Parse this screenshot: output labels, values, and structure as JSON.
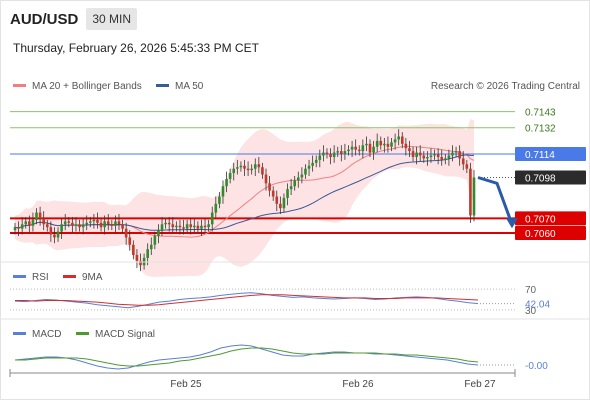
{
  "header": {
    "symbol": "AUD/USD",
    "timeframe": "30 MIN",
    "datetime": "Thursday, February 26, 2026 5:45:33 PM CET",
    "copyright": "Research © 2026 Trading Central"
  },
  "colors": {
    "up": "#2e8b2e",
    "down": "#c0392b",
    "ma20": "#f08080",
    "ma50": "#3a5a9a",
    "bollinger_fill": "#fde3e3",
    "support": "#dd0000",
    "resistance_blue": "#4a7ae8",
    "target_green": "#8cc36b",
    "rsi": "#5b7fd6",
    "rsi_ma": "#d32f2f",
    "macd": "#5b7fd6",
    "macd_signal": "#4f9a2e",
    "arrow": "#2a5aa8"
  },
  "chart_data": [
    {
      "type": "candlestick",
      "panel": "price",
      "legend": [
        {
          "name": "MA 20 + Bollinger Bands",
          "color": "#f08080"
        },
        {
          "name": "MA 50",
          "color": "#3a5a9a"
        }
      ],
      "x_ticks": [
        "Feb 25",
        "Feb 26",
        "Feb 27"
      ],
      "ylim": [
        0.7045,
        0.7153
      ],
      "levels": [
        {
          "value": 0.7143,
          "label": "0.7143",
          "kind": "target"
        },
        {
          "value": 0.7132,
          "label": "0.7132",
          "kind": "target"
        },
        {
          "value": 0.7114,
          "label": "0.7114",
          "kind": "resistance"
        },
        {
          "value": 0.7098,
          "label": "0.7098",
          "kind": "last"
        },
        {
          "value": 0.707,
          "label": "0.7070",
          "kind": "support"
        },
        {
          "value": 0.706,
          "label": "0.7060",
          "kind": "support"
        }
      ],
      "closes": [
        0.7064,
        0.7063,
        0.7066,
        0.7068,
        0.7065,
        0.7069,
        0.7074,
        0.707,
        0.7066,
        0.7064,
        0.7059,
        0.7057,
        0.7061,
        0.7066,
        0.7068,
        0.7067,
        0.7065,
        0.7066,
        0.7064,
        0.7066,
        0.7067,
        0.7068,
        0.7069,
        0.7067,
        0.7064,
        0.7068,
        0.7066,
        0.7065,
        0.7068,
        0.7066,
        0.7063,
        0.7057,
        0.7052,
        0.7045,
        0.7041,
        0.7038,
        0.7043,
        0.7049,
        0.7052,
        0.7058,
        0.7062,
        0.7066,
        0.7067,
        0.7066,
        0.7064,
        0.7065,
        0.7064,
        0.7063,
        0.7066,
        0.7064,
        0.7065,
        0.7063,
        0.7065,
        0.7064,
        0.7066,
        0.7074,
        0.708,
        0.7085,
        0.7092,
        0.7097,
        0.7101,
        0.7104,
        0.7105,
        0.7106,
        0.7104,
        0.7103,
        0.7104,
        0.7107,
        0.7105,
        0.71,
        0.7094,
        0.7089,
        0.7085,
        0.708,
        0.7077,
        0.7084,
        0.709,
        0.7092,
        0.7096,
        0.7098,
        0.71,
        0.7104,
        0.7106,
        0.7108,
        0.711,
        0.7113,
        0.7115,
        0.7114,
        0.7112,
        0.7115,
        0.7116,
        0.7114,
        0.7116,
        0.7117,
        0.7119,
        0.7117,
        0.7116,
        0.712,
        0.7121,
        0.7115,
        0.7119,
        0.7123,
        0.712,
        0.7121,
        0.7119,
        0.7122,
        0.7124,
        0.7126,
        0.7121,
        0.7118,
        0.7116,
        0.7112,
        0.7115,
        0.7113,
        0.7111,
        0.7112,
        0.7113,
        0.7114,
        0.7112,
        0.711,
        0.7111,
        0.7113,
        0.7115,
        0.7116,
        0.7111,
        0.7107,
        0.7104,
        0.7072,
        0.7098
      ],
      "forecast": [
        0.7098,
        0.7094,
        0.7066
      ]
    },
    {
      "type": "line",
      "panel": "rsi",
      "legend": [
        {
          "name": "RSI",
          "color": "#5b7fd6"
        },
        {
          "name": "9MA",
          "color": "#d32f2f"
        }
      ],
      "levels": [
        70,
        30
      ],
      "ylim": [
        22,
        78
      ],
      "value_label": "42.04",
      "series": [
        {
          "name": "RSI",
          "values": [
            47,
            46,
            48,
            50,
            49,
            47,
            45,
            43,
            40,
            38,
            36,
            34,
            37,
            41,
            45,
            47,
            50,
            52,
            53,
            55,
            58,
            60,
            62,
            63,
            61,
            58,
            56,
            54,
            55,
            53,
            52,
            51,
            52,
            53,
            52,
            50,
            51,
            53,
            54,
            55,
            54,
            52,
            49,
            47,
            44,
            42
          ]
        },
        {
          "name": "9MA",
          "values": [
            48,
            48,
            47,
            48,
            48,
            48,
            47,
            46,
            45,
            43,
            41,
            40,
            39,
            39,
            40,
            42,
            44,
            46,
            48,
            50,
            52,
            54,
            56,
            58,
            59,
            59,
            59,
            58,
            57,
            56,
            55,
            54,
            53,
            53,
            53,
            52,
            52,
            52,
            53,
            53,
            53,
            53,
            52,
            51,
            50,
            49
          ]
        }
      ]
    },
    {
      "type": "line",
      "panel": "macd",
      "legend": [
        {
          "name": "MACD",
          "color": "#5b7fd6"
        },
        {
          "name": "MACD Signal",
          "color": "#4f9a2e"
        }
      ],
      "ylim": [
        -0.0012,
        0.0018
      ],
      "value_label": "-0.00",
      "series": [
        {
          "name": "MACD",
          "values": [
            0.0,
            0.0001,
            0.0002,
            0.0003,
            0.0003,
            0.0002,
            0.0,
            -0.0003,
            -0.0006,
            -0.0008,
            -0.0009,
            -0.0008,
            -0.0005,
            -0.0002,
            0.0,
            0.0001,
            0.0002,
            0.0003,
            0.0005,
            0.0008,
            0.0012,
            0.0014,
            0.0015,
            0.0014,
            0.0011,
            0.0008,
            0.0005,
            0.0004,
            0.0004,
            0.0006,
            0.0007,
            0.0008,
            0.0008,
            0.0007,
            0.0007,
            0.0006,
            0.0006,
            0.0005,
            0.0004,
            0.0003,
            0.0002,
            0.0001,
            0.0,
            -0.0002,
            -0.0004,
            -0.0005
          ]
        },
        {
          "name": "MACD Signal",
          "values": [
            0.0,
            0.0,
            0.0001,
            0.0002,
            0.0002,
            0.0002,
            0.0002,
            0.0001,
            -0.0001,
            -0.0003,
            -0.0005,
            -0.0006,
            -0.0006,
            -0.0005,
            -0.0004,
            -0.0003,
            -0.0001,
            0.0,
            0.0002,
            0.0004,
            0.0006,
            0.0009,
            0.0011,
            0.0012,
            0.0012,
            0.0011,
            0.0009,
            0.0007,
            0.0006,
            0.0006,
            0.0006,
            0.0007,
            0.0007,
            0.0007,
            0.0007,
            0.0007,
            0.0006,
            0.0006,
            0.0005,
            0.0005,
            0.0004,
            0.0003,
            0.0002,
            0.0001,
            -0.0001,
            -0.0002
          ]
        }
      ]
    }
  ]
}
